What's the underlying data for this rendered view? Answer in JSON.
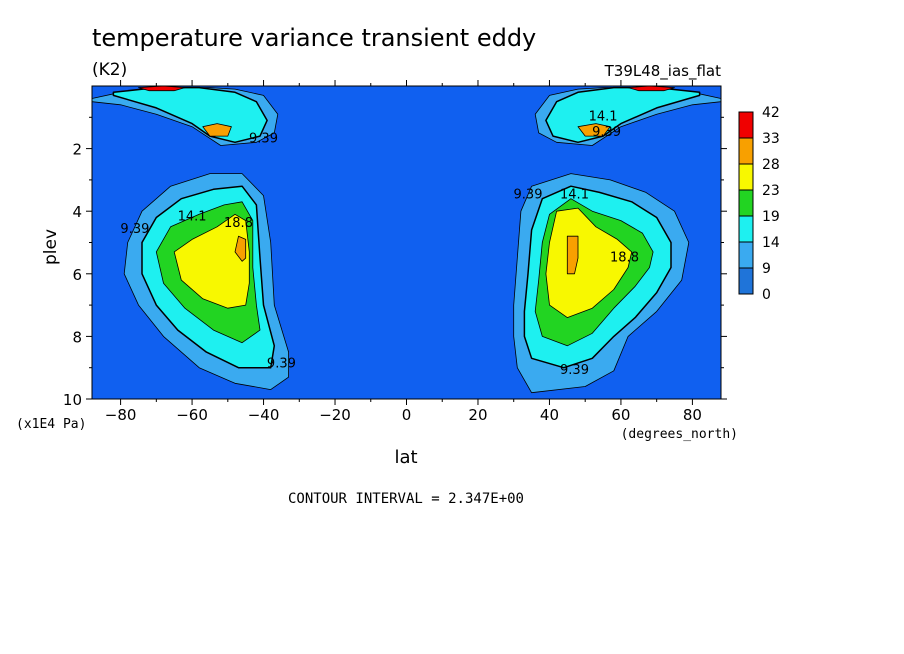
{
  "chart_data": {
    "type": "contour",
    "title": "temperature variance transient eddy",
    "units": "(K2)",
    "model_label": "T39L48_ias_flat",
    "xlabel": "lat",
    "xunits": "(degrees_north)",
    "ylabel": "plev",
    "yunits": "(x1E4 Pa)",
    "xlim": [
      -88,
      88
    ],
    "ylim": [
      0,
      10
    ],
    "y_inverted": true,
    "x_ticks": [
      -80,
      -60,
      -40,
      -20,
      0,
      20,
      40,
      60,
      80
    ],
    "y_ticks": [
      2,
      4,
      6,
      8,
      10
    ],
    "contour_interval_text": "CONTOUR INTERVAL = 2.347E+00",
    "contour_labels": [
      {
        "text": "9.39",
        "lat": -40,
        "plev": 1.8
      },
      {
        "text": "14.1",
        "lat": 55,
        "plev": 1.1
      },
      {
        "text": "9.39",
        "lat": 56,
        "plev": 1.6
      },
      {
        "text": "9.39",
        "lat": -76,
        "plev": 4.7
      },
      {
        "text": "14.1",
        "lat": -60,
        "plev": 4.3
      },
      {
        "text": "18.8",
        "lat": -47,
        "plev": 4.5
      },
      {
        "text": "9.39",
        "lat": 34,
        "plev": 3.6
      },
      {
        "text": "14.1",
        "lat": 47,
        "plev": 3.6
      },
      {
        "text": "18.8",
        "lat": 61,
        "plev": 5.6
      },
      {
        "text": "9.39",
        "lat": -35,
        "plev": 9.0
      },
      {
        "text": "9.39",
        "lat": 47,
        "plev": 9.2
      }
    ],
    "colorbar": {
      "levels": [
        "0",
        "9",
        "14",
        "19",
        "23",
        "28",
        "33",
        "42"
      ],
      "colors": [
        "#1f74d9",
        "#3aaaf0",
        "#1ef0f0",
        "#22d422",
        "#f8f800",
        "#f8a000",
        "#f00000"
      ]
    },
    "background_color": "#1060f0",
    "filled_regions": [
      {
        "level": 1,
        "polygons": [
          [
            [
              -88,
              0.4
            ],
            [
              -80,
              0.2
            ],
            [
              -65,
              0.05
            ],
            [
              -55,
              0.05
            ],
            [
              -48,
              0.1
            ],
            [
              -40,
              0.3
            ],
            [
              -36,
              0.9
            ],
            [
              -37,
              1.5
            ],
            [
              -42,
              1.8
            ],
            [
              -52,
              1.9
            ],
            [
              -60,
              1.3
            ],
            [
              -70,
              0.9
            ],
            [
              -80,
              0.6
            ],
            [
              -88,
              0.5
            ]
          ],
          [
            [
              88,
              0.4
            ],
            [
              80,
              0.2
            ],
            [
              65,
              0.05
            ],
            [
              55,
              0.05
            ],
            [
              48,
              0.1
            ],
            [
              40,
              0.3
            ],
            [
              36,
              0.9
            ],
            [
              37,
              1.5
            ],
            [
              42,
              1.8
            ],
            [
              52,
              1.9
            ],
            [
              60,
              1.3
            ],
            [
              70,
              0.9
            ],
            [
              80,
              0.6
            ],
            [
              88,
              0.5
            ]
          ],
          [
            [
              -78,
              5.0
            ],
            [
              -74,
              4.0
            ],
            [
              -66,
              3.2
            ],
            [
              -55,
              2.8
            ],
            [
              -46,
              2.8
            ],
            [
              -40,
              3.5
            ],
            [
              -38,
              5.0
            ],
            [
              -37,
              7.0
            ],
            [
              -33,
              8.5
            ],
            [
              -33,
              9.3
            ],
            [
              -38,
              9.7
            ],
            [
              -48,
              9.5
            ],
            [
              -58,
              9.0
            ],
            [
              -68,
              8.0
            ],
            [
              -75,
              7.0
            ],
            [
              -79,
              6.0
            ]
          ],
          [
            [
              79,
              5.0
            ],
            [
              75,
              4.0
            ],
            [
              67,
              3.4
            ],
            [
              57,
              3.0
            ],
            [
              46,
              2.8
            ],
            [
              35,
              3.2
            ],
            [
              32,
              4.0
            ],
            [
              31,
              5.5
            ],
            [
              30,
              7.0
            ],
            [
              30,
              8.0
            ],
            [
              31,
              9.0
            ],
            [
              35,
              9.8
            ],
            [
              50,
              9.6
            ],
            [
              58,
              9.1
            ],
            [
              62,
              8.0
            ],
            [
              70,
              7.2
            ],
            [
              77,
              6.2
            ]
          ]
        ]
      },
      {
        "level": 2,
        "polygons": [
          [
            [
              -82,
              0.2
            ],
            [
              -70,
              0.05
            ],
            [
              -58,
              0.05
            ],
            [
              -48,
              0.2
            ],
            [
              -42,
              0.5
            ],
            [
              -39,
              1.1
            ],
            [
              -41,
              1.6
            ],
            [
              -48,
              1.8
            ],
            [
              -55,
              1.6
            ],
            [
              -60,
              1.2
            ],
            [
              -70,
              0.7
            ],
            [
              -82,
              0.3
            ]
          ],
          [
            [
              82,
              0.2
            ],
            [
              70,
              0.05
            ],
            [
              58,
              0.05
            ],
            [
              48,
              0.2
            ],
            [
              42,
              0.5
            ],
            [
              39,
              1.1
            ],
            [
              41,
              1.6
            ],
            [
              48,
              1.8
            ],
            [
              55,
              1.6
            ],
            [
              60,
              1.2
            ],
            [
              70,
              0.7
            ],
            [
              82,
              0.3
            ]
          ],
          [
            [
              -74,
              5.0
            ],
            [
              -70,
              4.2
            ],
            [
              -63,
              3.6
            ],
            [
              -54,
              3.3
            ],
            [
              -46,
              3.2
            ],
            [
              -42,
              3.8
            ],
            [
              -41,
              5.5
            ],
            [
              -40,
              7.0
            ],
            [
              -37,
              8.3
            ],
            [
              -38,
              9.0
            ],
            [
              -47,
              9.0
            ],
            [
              -56,
              8.5
            ],
            [
              -64,
              7.8
            ],
            [
              -70,
              7.0
            ],
            [
              -74,
              6.0
            ]
          ],
          [
            [
              74,
              5.0
            ],
            [
              70,
              4.2
            ],
            [
              63,
              3.7
            ],
            [
              54,
              3.4
            ],
            [
              46,
              3.2
            ],
            [
              38,
              3.6
            ],
            [
              35,
              4.6
            ],
            [
              34,
              6.0
            ],
            [
              33,
              7.2
            ],
            [
              33,
              8.0
            ],
            [
              35,
              8.7
            ],
            [
              44,
              9.0
            ],
            [
              52,
              8.7
            ],
            [
              58,
              8.0
            ],
            [
              64,
              7.4
            ],
            [
              70,
              6.6
            ],
            [
              74,
              5.8
            ]
          ]
        ]
      },
      {
        "level": 3,
        "polygons": [
          [
            [
              -70,
              5.3
            ],
            [
              -66,
              4.5
            ],
            [
              -58,
              4.1
            ],
            [
              -51,
              3.8
            ],
            [
              -46,
              3.7
            ],
            [
              -43,
              4.3
            ],
            [
              -43,
              5.8
            ],
            [
              -42,
              7.0
            ],
            [
              -41,
              7.8
            ],
            [
              -46,
              8.2
            ],
            [
              -54,
              7.8
            ],
            [
              -62,
              7.1
            ],
            [
              -68,
              6.3
            ]
          ],
          [
            [
              69,
              5.3
            ],
            [
              66,
              4.7
            ],
            [
              60,
              4.3
            ],
            [
              52,
              4.0
            ],
            [
              46,
              3.6
            ],
            [
              40,
              4.1
            ],
            [
              38,
              5.0
            ],
            [
              37,
              6.2
            ],
            [
              36,
              7.2
            ],
            [
              38,
              8.0
            ],
            [
              45,
              8.3
            ],
            [
              52,
              7.9
            ],
            [
              58,
              7.1
            ],
            [
              64,
              6.4
            ],
            [
              68,
              5.8
            ]
          ]
        ]
      },
      {
        "level": 4,
        "polygons": [
          [
            [
              -65,
              5.3
            ],
            [
              -60,
              4.9
            ],
            [
              -53,
              4.5
            ],
            [
              -48,
              4.1
            ],
            [
              -45,
              4.3
            ],
            [
              -44,
              5.3
            ],
            [
              -44,
              6.3
            ],
            [
              -45,
              7.0
            ],
            [
              -50,
              7.1
            ],
            [
              -57,
              6.8
            ],
            [
              -63,
              6.2
            ]
          ],
          [
            [
              63,
              5.3
            ],
            [
              59,
              4.9
            ],
            [
              53,
              4.5
            ],
            [
              48,
              3.9
            ],
            [
              42,
              4.0
            ],
            [
              40,
              5.0
            ],
            [
              39,
              6.0
            ],
            [
              40,
              7.0
            ],
            [
              45,
              7.4
            ],
            [
              52,
              7.1
            ],
            [
              58,
              6.5
            ],
            [
              62,
              5.8
            ]
          ]
        ]
      },
      {
        "level": 5,
        "polygons": [
          [
            [
              -47,
              4.8
            ],
            [
              -45,
              4.9
            ],
            [
              -45,
              5.5
            ],
            [
              -46,
              5.6
            ],
            [
              -48,
              5.3
            ]
          ],
          [
            [
              45,
              4.8
            ],
            [
              48,
              4.8
            ],
            [
              48,
              5.5
            ],
            [
              47,
              6.0
            ],
            [
              45,
              6.0
            ],
            [
              45,
              5.5
            ]
          ],
          [
            [
              -57,
              1.3
            ],
            [
              -53,
              1.2
            ],
            [
              -49,
              1.3
            ],
            [
              -50,
              1.6
            ],
            [
              -55,
              1.6
            ]
          ],
          [
            [
              48,
              1.3
            ],
            [
              53,
              1.2
            ],
            [
              57,
              1.3
            ],
            [
              55,
              1.6
            ],
            [
              50,
              1.6
            ]
          ]
        ]
      },
      {
        "level": 6,
        "polygons": [
          [
            [
              -75,
              0.05
            ],
            [
              -68,
              0.0
            ],
            [
              -62,
              0.05
            ],
            [
              -65,
              0.15
            ],
            [
              -72,
              0.15
            ]
          ],
          [
            [
              62,
              0.05
            ],
            [
              68,
              0.0
            ],
            [
              75,
              0.05
            ],
            [
              72,
              0.15
            ],
            [
              65,
              0.15
            ]
          ]
        ]
      }
    ]
  }
}
